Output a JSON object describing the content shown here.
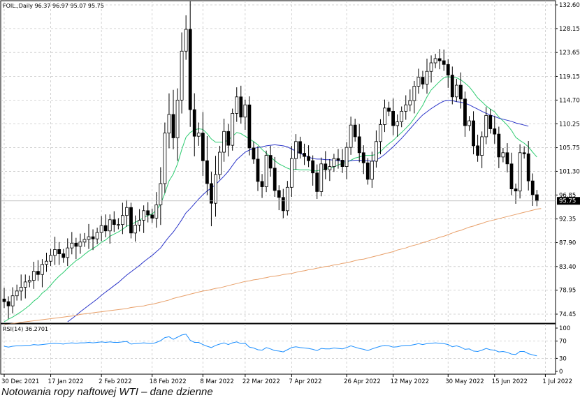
{
  "caption": "Notowania ropy naftowej WTI – dane dzienne",
  "chart_data": [
    {
      "type": "candlestick",
      "header": "FOIL.,Daily  96.37 96.97 95.07 95.75",
      "last_price_label": "95.75",
      "last_price": 95.75,
      "ylim": [
        72.5,
        132.6
      ],
      "y_ticks": [
        74.45,
        78.95,
        83.4,
        87.9,
        92.35,
        96.85,
        101.3,
        105.75,
        110.25,
        114.7,
        119.15,
        123.65,
        128.15,
        132.6
      ],
      "y_tick_labels": [
        "74.45",
        "78.95",
        "83.40",
        "87.90",
        "92.35",
        "96.85",
        "101.30",
        "105.75",
        "110.25",
        "114.70",
        "119.15",
        "123.65",
        "128.15",
        "132.60"
      ],
      "x_labels": [
        "30 Dec 2021",
        "17 Jan 2022",
        "2 Feb 2022",
        "18 Feb 2022",
        "8 Mar 2022",
        "22 Mar 2022",
        "7 Apr 2022",
        "26 Apr 2022",
        "12 May 2022",
        "30 May 2022",
        "15 Jun 2022",
        "1 Jul 2022"
      ],
      "x_label_index": [
        0,
        11,
        23,
        35,
        47,
        57,
        68,
        81,
        92,
        105,
        116,
        128
      ],
      "close": [
        76.8,
        76.0,
        77.9,
        78.8,
        79.5,
        80.5,
        80.8,
        82.5,
        81.9,
        83.8,
        84.4,
        85.5,
        86.6,
        85.8,
        85.1,
        86.9,
        87.8,
        87.2,
        88.0,
        88.5,
        89.0,
        88.6,
        89.8,
        91.1,
        90.1,
        92.2,
        91.3,
        91.3,
        93.0,
        94.5,
        89.7,
        91.2,
        92.1,
        93.9,
        93.1,
        92.5,
        95.0,
        99.0,
        108.5,
        112.0,
        107.6,
        114.7,
        123.9,
        128.0,
        112.9,
        107.9,
        108.5,
        103.3,
        99.0,
        95.3,
        100.7,
        104.9,
        108.8,
        106.2,
        112.2,
        115.3,
        111.5,
        113.8,
        105.7,
        103.6,
        99.4,
        98.4,
        104.3,
        101.9,
        97.7,
        96.4,
        93.9,
        98.3,
        103.7,
        106.9,
        104.7,
        104.1,
        103.3,
        101.0,
        97.5,
        102.7,
        101.6,
        102.2,
        103.7,
        103.4,
        102.2,
        105.8,
        110.0,
        107.8,
        104.8,
        102.9,
        99.8,
        103.2,
        106.9,
        110.1,
        113.2,
        112.6,
        109.9,
        110.6,
        112.6,
        113.8,
        114.6,
        117.3,
        119.0,
        117.7,
        120.1,
        121.7,
        122.5,
        122.1,
        121.4,
        119.4,
        115.3,
        117.5,
        114.9,
        109.9,
        110.8,
        106.1,
        104.3,
        107.8,
        111.8,
        109.3,
        108.3,
        104.0,
        104.8,
        102.7,
        98.0,
        97.6,
        104.8,
        104.6,
        99.5,
        96.9,
        95.75
      ],
      "series": [
        {
          "name": "",
          "color": "#2ecc71",
          "values": [
            73.0,
            73.5,
            73.9,
            74.4,
            74.9,
            75.5,
            76.1,
            76.9,
            77.5,
            78.4,
            79.0,
            79.9,
            80.8,
            81.6,
            82.3,
            83.1,
            83.8,
            84.5,
            85.0,
            85.7,
            86.3,
            86.8,
            87.3,
            88.0,
            88.4,
            89.1,
            89.5,
            89.9,
            90.4,
            91.0,
            91.3,
            91.7,
            92.1,
            92.6,
            93.0,
            93.3,
            94.0,
            95.1,
            97.2,
            99.5,
            100.8,
            102.7,
            105.4,
            107.7,
            108.6,
            109.1,
            109.3,
            109.2,
            108.4,
            107.4,
            106.8,
            106.8,
            106.8,
            107.2,
            107.9,
            108.6,
            108.4,
            107.9,
            107.4,
            106.9,
            106.3,
            105.4,
            104.7,
            104.0,
            103.3,
            102.7,
            102.3,
            101.9,
            101.6,
            101.7,
            101.6,
            101.6,
            101.6,
            101.4,
            101.4,
            101.6,
            101.8,
            102.0,
            102.1,
            102.5,
            102.8,
            103.0,
            103.4,
            103.8,
            104.0,
            104.3,
            104.3,
            104.3,
            104.5,
            105.0,
            105.8,
            106.5,
            107.1,
            107.9,
            108.6,
            109.4,
            110.2,
            111.3,
            112.5,
            113.7,
            115.3,
            116.6,
            117.4,
            118.2,
            118.9,
            119.1,
            118.9,
            118.9,
            118.5,
            117.9,
            117.2,
            116.2,
            115.1,
            114.4,
            113.6,
            113.0,
            112.5,
            111.5,
            110.8,
            110.0,
            109.0,
            107.7,
            107.1,
            106.6,
            105.9,
            104.9,
            104.0
          ]
        },
        {
          "name": "",
          "color": "#2b35c9",
          "values": [
            null,
            null,
            null,
            null,
            null,
            null,
            null,
            null,
            null,
            null,
            null,
            null,
            null,
            null,
            null,
            73.0,
            73.6,
            74.2,
            74.9,
            75.5,
            76.1,
            76.7,
            77.3,
            78.0,
            78.6,
            79.2,
            79.8,
            80.4,
            81.1,
            81.8,
            82.4,
            83.0,
            83.6,
            84.3,
            84.9,
            85.5,
            86.2,
            86.9,
            88.0,
            89.0,
            89.9,
            91.0,
            92.2,
            93.5,
            94.3,
            95.2,
            96.1,
            96.9,
            97.6,
            98.2,
            98.8,
            99.6,
            100.4,
            101.3,
            102.4,
            103.5,
            104.2,
            104.9,
            105.3,
            105.6,
            105.8,
            105.9,
            106.1,
            106.2,
            106.3,
            106.2,
            106.1,
            105.9,
            105.5,
            105.1,
            104.7,
            104.3,
            104.0,
            103.7,
            103.6,
            103.6,
            103.5,
            103.5,
            103.4,
            103.3,
            103.2,
            103.2,
            103.3,
            103.4,
            103.4,
            103.3,
            103.3,
            103.2,
            103.4,
            103.9,
            104.5,
            105.2,
            105.9,
            106.7,
            107.5,
            108.4,
            109.3,
            110.2,
            111.1,
            111.9,
            112.5,
            113.1,
            113.6,
            114.1,
            114.5,
            114.7,
            114.6,
            114.4,
            114.3,
            114.1,
            113.8,
            113.4,
            113.0,
            112.6,
            112.2,
            111.9,
            111.6,
            111.3,
            111.1,
            110.9,
            110.7,
            110.4,
            110.2,
            110.0,
            109.8
          ]
        },
        {
          "name": "",
          "color": "#e8a06a",
          "values": [
            72.5,
            72.6,
            72.7,
            72.8,
            72.9,
            73.0,
            73.1,
            73.2,
            73.3,
            73.4,
            73.5,
            73.6,
            73.7,
            73.8,
            73.9,
            74.0,
            74.1,
            74.2,
            74.4,
            74.5,
            74.6,
            74.7,
            74.8,
            74.9,
            75.0,
            75.1,
            75.2,
            75.3,
            75.4,
            75.5,
            75.7,
            75.8,
            75.9,
            76.0,
            76.2,
            76.3,
            76.5,
            76.7,
            76.9,
            77.1,
            77.4,
            77.6,
            77.8,
            78.0,
            78.2,
            78.4,
            78.6,
            78.8,
            78.9,
            79.1,
            79.3,
            79.4,
            79.6,
            79.8,
            80.0,
            80.2,
            80.4,
            80.6,
            80.7,
            80.9,
            81.0,
            81.2,
            81.3,
            81.5,
            81.6,
            81.7,
            81.9,
            82.0,
            82.1,
            82.3,
            82.5,
            82.6,
            82.8,
            82.9,
            83.1,
            83.2,
            83.4,
            83.5,
            83.7,
            83.8,
            84.0,
            84.1,
            84.3,
            84.5,
            84.7,
            84.8,
            85.0,
            85.2,
            85.4,
            85.6,
            85.8,
            86.0,
            86.2,
            86.5,
            86.7,
            86.9,
            87.2,
            87.4,
            87.6,
            87.9,
            88.1,
            88.4,
            88.6,
            88.9,
            89.1,
            89.4,
            89.7,
            90.0,
            90.2,
            90.5,
            90.8,
            91.0,
            91.3,
            91.5,
            91.8,
            92.0,
            92.2,
            92.4,
            92.6,
            92.8,
            93.0,
            93.2,
            93.4,
            93.6,
            93.8,
            94.0,
            94.2,
            94.3
          ]
        }
      ]
    },
    {
      "type": "line",
      "header": "RSI(14) 36.2701",
      "ylim": [
        0,
        100
      ],
      "y_ticks": [
        0,
        30,
        70,
        100
      ],
      "y_tick_labels": [
        "0",
        "30",
        "70",
        "100"
      ],
      "series": [
        {
          "name": "",
          "color": "#1e90ff",
          "values": [
            58,
            56,
            58,
            59,
            59,
            60,
            60,
            62,
            61,
            62,
            63,
            64,
            65,
            64,
            63,
            65,
            66,
            65,
            66,
            66,
            67,
            66,
            67,
            68,
            67,
            68,
            67,
            67,
            68,
            69,
            63,
            64,
            65,
            66,
            65,
            64,
            67,
            71,
            78,
            80,
            74,
            79,
            84,
            86,
            72,
            67,
            67,
            62,
            58,
            55,
            60,
            63,
            66,
            62,
            66,
            68,
            64,
            65,
            56,
            54,
            50,
            49,
            55,
            52,
            48,
            47,
            45,
            50,
            55,
            57,
            55,
            54,
            53,
            51,
            48,
            53,
            52,
            52,
            54,
            53,
            52,
            55,
            59,
            56,
            53,
            51,
            48,
            52,
            55,
            58,
            60,
            59,
            56,
            57,
            59,
            60,
            60,
            62,
            64,
            62,
            64,
            65,
            66,
            65,
            64,
            62,
            57,
            59,
            56,
            51,
            52,
            47,
            46,
            49,
            53,
            50,
            49,
            45,
            46,
            44,
            40,
            39,
            46,
            46,
            41,
            38,
            36
          ]
        }
      ]
    }
  ]
}
